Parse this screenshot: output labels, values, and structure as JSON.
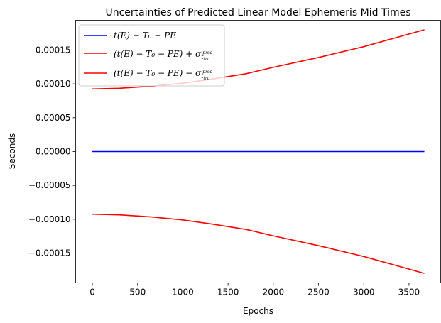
{
  "chart_data": {
    "type": "line",
    "title": "Uncertainties of Predicted Linear Model Ephemeris Mid Times",
    "xlabel": "Epochs",
    "ylabel": "Seconds",
    "xlim": [
      -185,
      3850
    ],
    "ylim": [
      -0.000194,
      0.000194
    ],
    "x_ticks": [
      0,
      500,
      1000,
      1500,
      2000,
      2500,
      3000,
      3500
    ],
    "x_tick_labels": [
      "0",
      "500",
      "1000",
      "1500",
      "2000",
      "2500",
      "3000",
      "3500"
    ],
    "y_ticks": [
      -0.00015,
      -0.0001,
      -5e-05,
      0,
      5e-05,
      0.0001,
      0.00015
    ],
    "y_tick_labels": [
      "−0.00015",
      "−0.00010",
      "−0.00005",
      "0.00000",
      "0.00005",
      "0.00010",
      "0.00015"
    ],
    "grid": false,
    "legend_placement": "top-left",
    "series": [
      {
        "name": "t(E) − T₀ − PE",
        "color": "#0000ff",
        "x": [
          0,
          3670
        ],
        "y": [
          0,
          0
        ]
      },
      {
        "name": "(t(E) − T₀ − PE) + σ",
        "sigma_sub": "t",
        "sigma_sub_sub": "tra",
        "sigma_sup": "pred",
        "color": "#ff0000",
        "x": [
          0,
          300,
          650,
          1000,
          1320,
          1700,
          2000,
          2500,
          3000,
          3670
        ],
        "y": [
          9.25e-05,
          9.35e-05,
          9.65e-05,
          0.000101,
          0.000107,
          0.000115,
          0.0001245,
          0.000139,
          0.000155,
          0.00018
        ]
      },
      {
        "name": "(t(E) − T₀ − PE) − σ",
        "sigma_sub": "t",
        "sigma_sub_sub": "tra",
        "sigma_sup": "pred",
        "color": "#ff0000",
        "x": [
          0,
          300,
          650,
          1000,
          1320,
          1700,
          2000,
          2500,
          3000,
          3670
        ],
        "y": [
          -9.25e-05,
          -9.35e-05,
          -9.65e-05,
          -0.000101,
          -0.000107,
          -0.000115,
          -0.0001245,
          -0.000139,
          -0.000155,
          -0.00018
        ]
      }
    ]
  }
}
